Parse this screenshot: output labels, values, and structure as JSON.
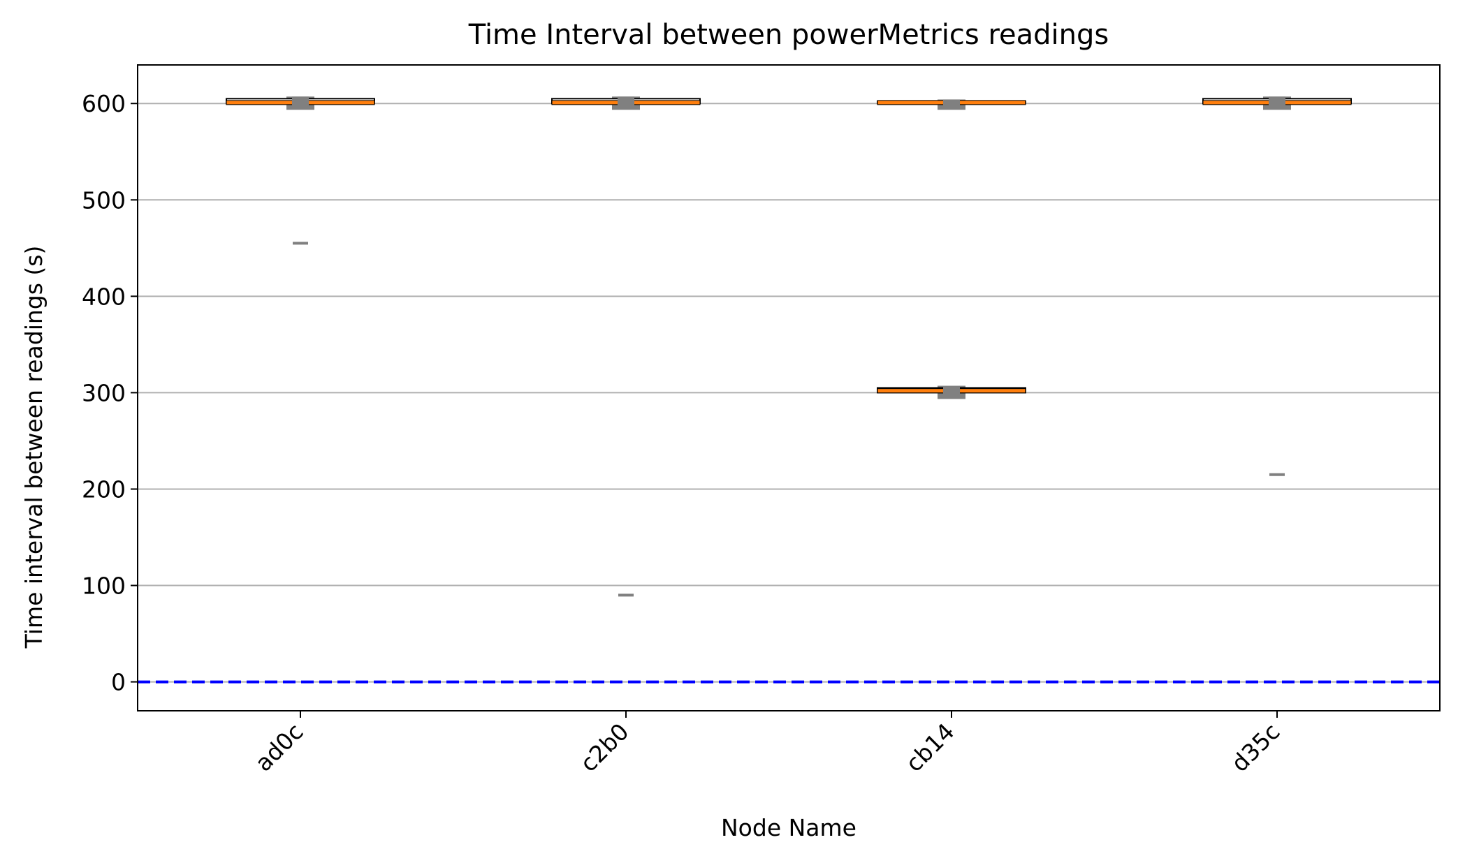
{
  "chart_data": {
    "type": "box",
    "title": "Time Interval between powerMetrics readings",
    "xlabel": "Node Name",
    "ylabel": "Time interval between readings (s)",
    "ylim": [
      -30,
      640
    ],
    "yticks": [
      0,
      100,
      200,
      300,
      400,
      500,
      600
    ],
    "grid": "horizontal",
    "categories": [
      "ad0c",
      "c2b0",
      "cb14",
      "d35c"
    ],
    "boxes": [
      {
        "category": "ad0c",
        "whisker_low": 600,
        "q1": 600,
        "median": 601,
        "q3": 605,
        "whisker_high": 605,
        "fliers": [
          455
        ]
      },
      {
        "category": "c2b0",
        "whisker_low": 600,
        "q1": 600,
        "median": 601,
        "q3": 605,
        "whisker_high": 605,
        "fliers": [
          90
        ]
      },
      {
        "category": "cb14",
        "whisker_low": 600,
        "q1": 600,
        "median": 601,
        "q3": 602,
        "whisker_high": 602,
        "fliers": []
      },
      {
        "category": "cb14",
        "whisker_low": 300,
        "q1": 300,
        "median": 302,
        "q3": 305,
        "whisker_high": 305,
        "fliers": []
      },
      {
        "category": "d35c",
        "whisker_low": 600,
        "q1": 600,
        "median": 601,
        "q3": 605,
        "whisker_high": 605,
        "fliers": [
          215
        ]
      }
    ],
    "reference_line": {
      "y": 0,
      "style": "dashed"
    },
    "colors": {
      "box_fill": "#ffffff",
      "median": "#ff7f0e",
      "whisker": "#808080",
      "flier": "#808080",
      "grid": "#b0b0b0",
      "reference_line": "#0000ff",
      "axes": "#000000"
    }
  }
}
